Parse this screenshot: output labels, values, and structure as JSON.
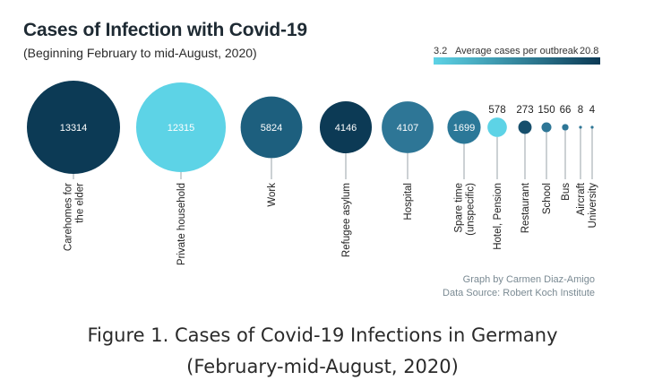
{
  "title": "Cases of Infection with Covid-19",
  "subtitle": "(Beginning February to mid-August, 2020)",
  "legend": {
    "min": "3.2",
    "label": "Average cases per outbreak",
    "max": "20.8",
    "color_min": "#5dd3e6",
    "color_max": "#0c3a55"
  },
  "credits": {
    "graph_by": "Graph by Carmen Diaz-Amigo",
    "source": "Data Source: Robert Koch Institute"
  },
  "caption": {
    "line1": "Figure 1. Cases of Covid-19 Infections in Germany",
    "line2": "(February-mid-August, 2020)"
  },
  "chart_data": {
    "type": "bubble",
    "title": "Cases of Infection with Covid-19",
    "subtitle": "(Beginning February to mid-August, 2020)",
    "size_encodes": "cases",
    "color_encodes": "Average cases per outbreak",
    "color_range": [
      3.2,
      20.8
    ],
    "categories": [
      {
        "label": [
          "Carehomes for",
          "the elder"
        ],
        "cases": 13314,
        "value_label": "13314",
        "color": "#0c3a55",
        "label_inside": true
      },
      {
        "label": [
          "Private household"
        ],
        "cases": 12315,
        "value_label": "12315",
        "color": "#5dd3e6",
        "label_inside": true
      },
      {
        "label": [
          "Work"
        ],
        "cases": 5824,
        "value_label": "5824",
        "color": "#1d5f7e",
        "label_inside": true
      },
      {
        "label": [
          "Refugee asylum"
        ],
        "cases": 4146,
        "value_label": "4146",
        "color": "#0c3a55",
        "label_inside": true
      },
      {
        "label": [
          "Hospital"
        ],
        "cases": 4107,
        "value_label": "4107",
        "color": "#2e7696",
        "label_inside": true
      },
      {
        "label": [
          "Spare time",
          "(unspecific)"
        ],
        "cases": 1699,
        "value_label": "1699",
        "color": "#2b7898",
        "label_inside": true
      },
      {
        "label": [
          "Hotel, Pension"
        ],
        "cases": 578,
        "value_label": "578",
        "color": "#5dd3e6",
        "label_inside": false
      },
      {
        "label": [
          "Restaurant"
        ],
        "cases": 273,
        "value_label": "273",
        "color": "#174f6c",
        "label_inside": false
      },
      {
        "label": [
          "School"
        ],
        "cases": 150,
        "value_label": "150",
        "color": "#2e7696",
        "label_inside": false
      },
      {
        "label": [
          "Bus"
        ],
        "cases": 66,
        "value_label": "66",
        "color": "#2e7696",
        "label_inside": false
      },
      {
        "label": [
          "Aircraft"
        ],
        "cases": 8,
        "value_label": "8",
        "color": "#2e7696",
        "label_inside": false
      },
      {
        "label": [
          "University"
        ],
        "cases": 4,
        "value_label": "4",
        "color": "#2e7696",
        "label_inside": false
      }
    ]
  }
}
